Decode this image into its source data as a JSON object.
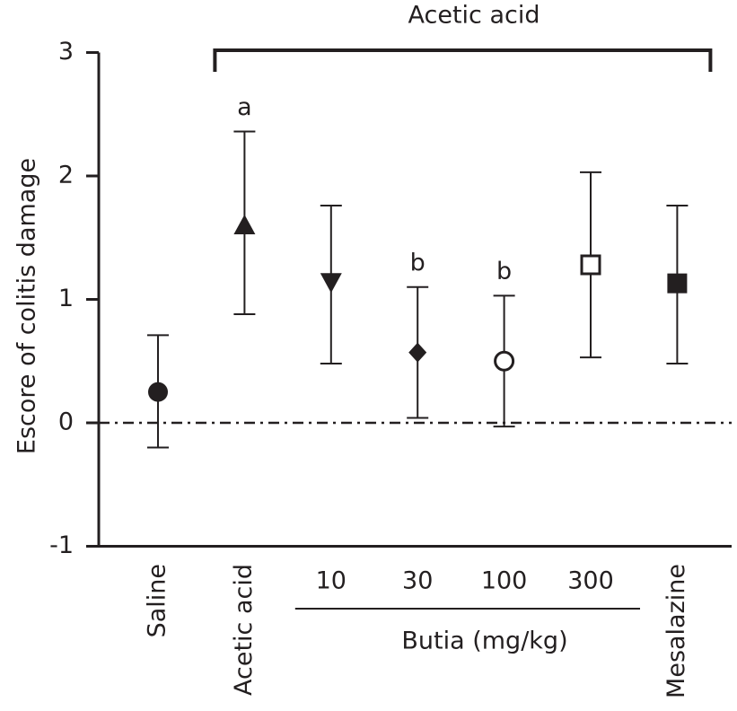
{
  "chart_data": {
    "type": "scatter",
    "ylabel": "Escore of colitis damage",
    "ylim": [
      -1,
      3
    ],
    "yticks": [
      3,
      2,
      1,
      0,
      -1
    ],
    "bracket_label": "Acetic acid",
    "group_label": "Butia (mg/kg)",
    "reference_line": {
      "y": 0,
      "style": "dash-dot"
    },
    "categories": [
      "Saline",
      "Acetic acid",
      "10",
      "30",
      "100",
      "300",
      "Mesalazine"
    ],
    "label_orientation": [
      "vertical",
      "vertical",
      "horizontal",
      "horizontal",
      "horizontal",
      "horizontal",
      "vertical"
    ],
    "points": [
      {
        "category": "Saline",
        "mean": 0.25,
        "upper": 0.71,
        "lower": -0.2,
        "marker": "filled-circle",
        "annotation": ""
      },
      {
        "category": "Acetic acid",
        "mean": 1.6,
        "upper": 2.36,
        "lower": 0.88,
        "marker": "filled-triangle-up",
        "annotation": "a"
      },
      {
        "category": "10",
        "mean": 1.14,
        "upper": 1.76,
        "lower": 0.48,
        "marker": "filled-triangle-down",
        "annotation": ""
      },
      {
        "category": "30",
        "mean": 0.57,
        "upper": 1.1,
        "lower": 0.04,
        "marker": "filled-diamond",
        "annotation": "b"
      },
      {
        "category": "100",
        "mean": 0.5,
        "upper": 1.03,
        "lower": -0.03,
        "marker": "open-circle",
        "annotation": "b"
      },
      {
        "category": "300",
        "mean": 1.28,
        "upper": 2.03,
        "lower": 0.53,
        "marker": "open-square",
        "annotation": ""
      },
      {
        "category": "Mesalazine",
        "mean": 1.13,
        "upper": 1.76,
        "lower": 0.48,
        "marker": "filled-square",
        "annotation": ""
      }
    ]
  }
}
